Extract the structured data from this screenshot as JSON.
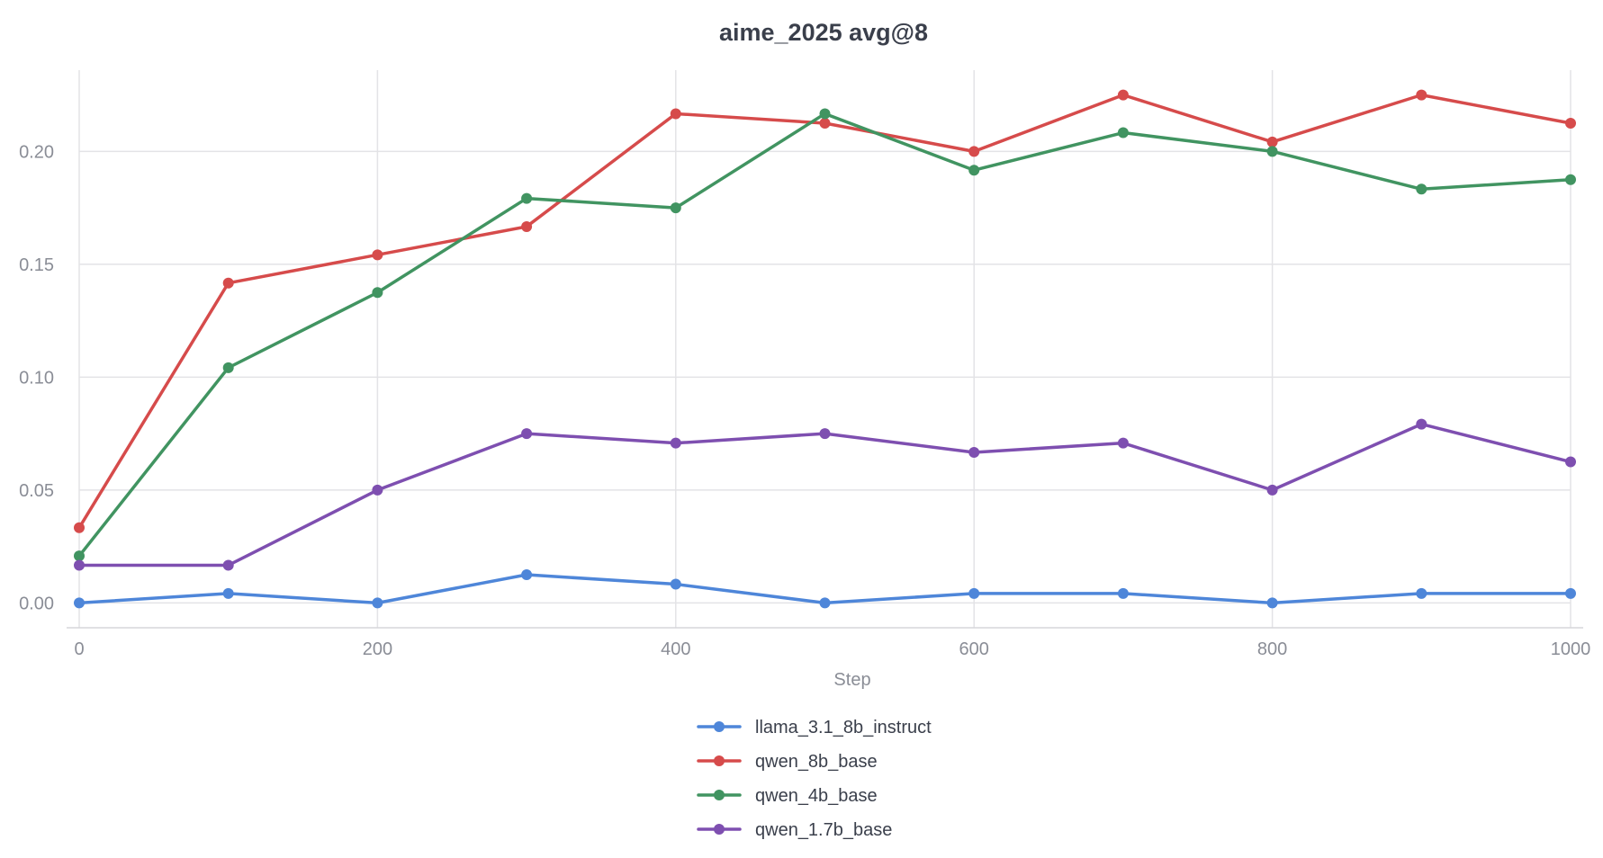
{
  "chart_data": {
    "type": "line",
    "title": "aime_2025 avg@8",
    "xlabel": "Step",
    "ylabel": "",
    "xlim": [
      0,
      1000
    ],
    "ylim": [
      -0.011,
      0.236
    ],
    "x_ticks": [
      0,
      200,
      400,
      600,
      800,
      1000
    ],
    "x_tick_labels": [
      "0",
      "200",
      "400",
      "600",
      "800",
      "1000"
    ],
    "y_ticks": [
      0.0,
      0.05,
      0.1,
      0.15,
      0.2
    ],
    "y_tick_labels": [
      "0.00",
      "0.05",
      "0.10",
      "0.15",
      "0.20"
    ],
    "grid": true,
    "legend_position": "bottom-center",
    "x": [
      0,
      100,
      200,
      300,
      400,
      500,
      600,
      700,
      800,
      900,
      1000
    ],
    "series": [
      {
        "name": "llama_3.1_8b_instruct",
        "color": "#4e86d9",
        "values": [
          0.0,
          0.0042,
          0.0,
          0.0125,
          0.0083,
          0.0,
          0.0042,
          0.0042,
          0.0,
          0.0042,
          0.0042
        ]
      },
      {
        "name": "qwen_8b_base",
        "color": "#d64b4b",
        "values": [
          0.0333,
          0.1417,
          0.1542,
          0.1667,
          0.2167,
          0.2125,
          0.2,
          0.225,
          0.2042,
          0.225,
          0.2125
        ]
      },
      {
        "name": "qwen_4b_base",
        "color": "#419461",
        "values": [
          0.0208,
          0.1042,
          0.1375,
          0.1792,
          0.175,
          0.2167,
          0.1917,
          0.2083,
          0.2,
          0.1833,
          0.1875
        ]
      },
      {
        "name": "qwen_1.7b_base",
        "color": "#7e4fb0",
        "values": [
          0.0167,
          0.0167,
          0.05,
          0.075,
          0.0708,
          0.075,
          0.0667,
          0.0708,
          0.05,
          0.0792,
          0.0625
        ]
      }
    ]
  }
}
